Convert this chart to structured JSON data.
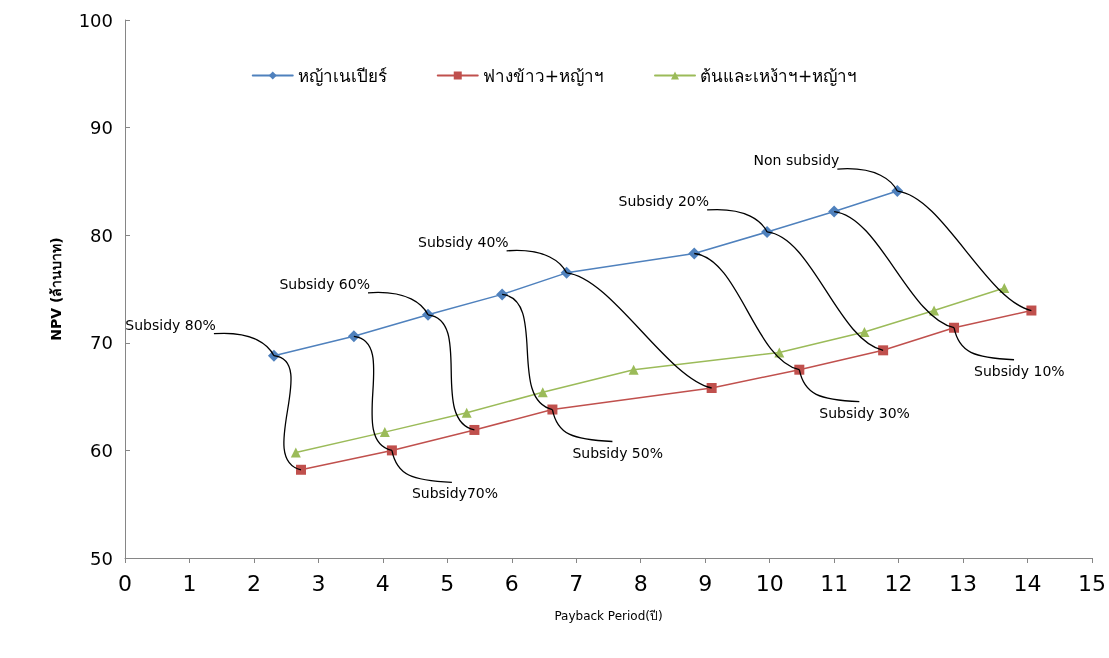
{
  "chart_data": {
    "type": "line",
    "xlabel": "Payback Period(ปี)",
    "ylabel": "NPV (ล้านบาท)",
    "xlim": [
      0,
      15
    ],
    "xticks": [
      0,
      1,
      2,
      3,
      4,
      5,
      6,
      7,
      8,
      9,
      10,
      11,
      12,
      13,
      14,
      15
    ],
    "ylim": [
      50,
      100
    ],
    "yticks": [
      50,
      60,
      70,
      80,
      90,
      100
    ],
    "grid": false,
    "legend": "top",
    "series": [
      {
        "name": "หญ้าเนเปียร์",
        "color": "#4f81bd",
        "marker": "diamond",
        "x": [
          2.31,
          3.55,
          4.7,
          5.85,
          6.85,
          8.83,
          9.96,
          11.0,
          11.98
        ],
        "values": [
          68.8,
          70.6,
          72.6,
          74.5,
          76.5,
          78.3,
          80.3,
          82.2,
          84.1
        ]
      },
      {
        "name": "ฟางข้าว+หญ้าฯ",
        "color": "#c0504d",
        "marker": "square",
        "x": [
          2.73,
          4.14,
          5.42,
          6.63,
          9.1,
          10.46,
          11.76,
          12.86,
          14.06
        ],
        "values": [
          58.2,
          60.0,
          61.9,
          63.8,
          65.8,
          67.5,
          69.3,
          71.4,
          73.0
        ]
      },
      {
        "name": "ต้นและเหง้าฯ+หญ้าฯ",
        "color": "#9bbb59",
        "marker": "triangle",
        "x": [
          2.65,
          4.03,
          5.3,
          6.48,
          7.89,
          10.15,
          11.47,
          12.55,
          13.64
        ],
        "values": [
          59.8,
          61.7,
          63.5,
          65.4,
          67.5,
          69.1,
          71.0,
          73.0,
          75.1
        ]
      }
    ],
    "annotations": [
      {
        "text": "Subsidy 80%",
        "x": 2.31,
        "y": 68.8
      },
      {
        "text": "Subsidy70%",
        "x": 4.14,
        "y": 60.0
      },
      {
        "text": "Subsidy 60%",
        "x": 4.7,
        "y": 72.6
      },
      {
        "text": "Subsidy 50%",
        "x": 6.63,
        "y": 63.8
      },
      {
        "text": "Subsidy 40%",
        "x": 6.85,
        "y": 76.5
      },
      {
        "text": "Subsidy 30%",
        "x": 10.46,
        "y": 67.5
      },
      {
        "text": "Subsidy 20%",
        "x": 9.96,
        "y": 80.3
      },
      {
        "text": "Subsidy 10%",
        "x": 12.86,
        "y": 71.4
      },
      {
        "text": "Non subsidy",
        "x": 11.98,
        "y": 84.1
      }
    ]
  }
}
